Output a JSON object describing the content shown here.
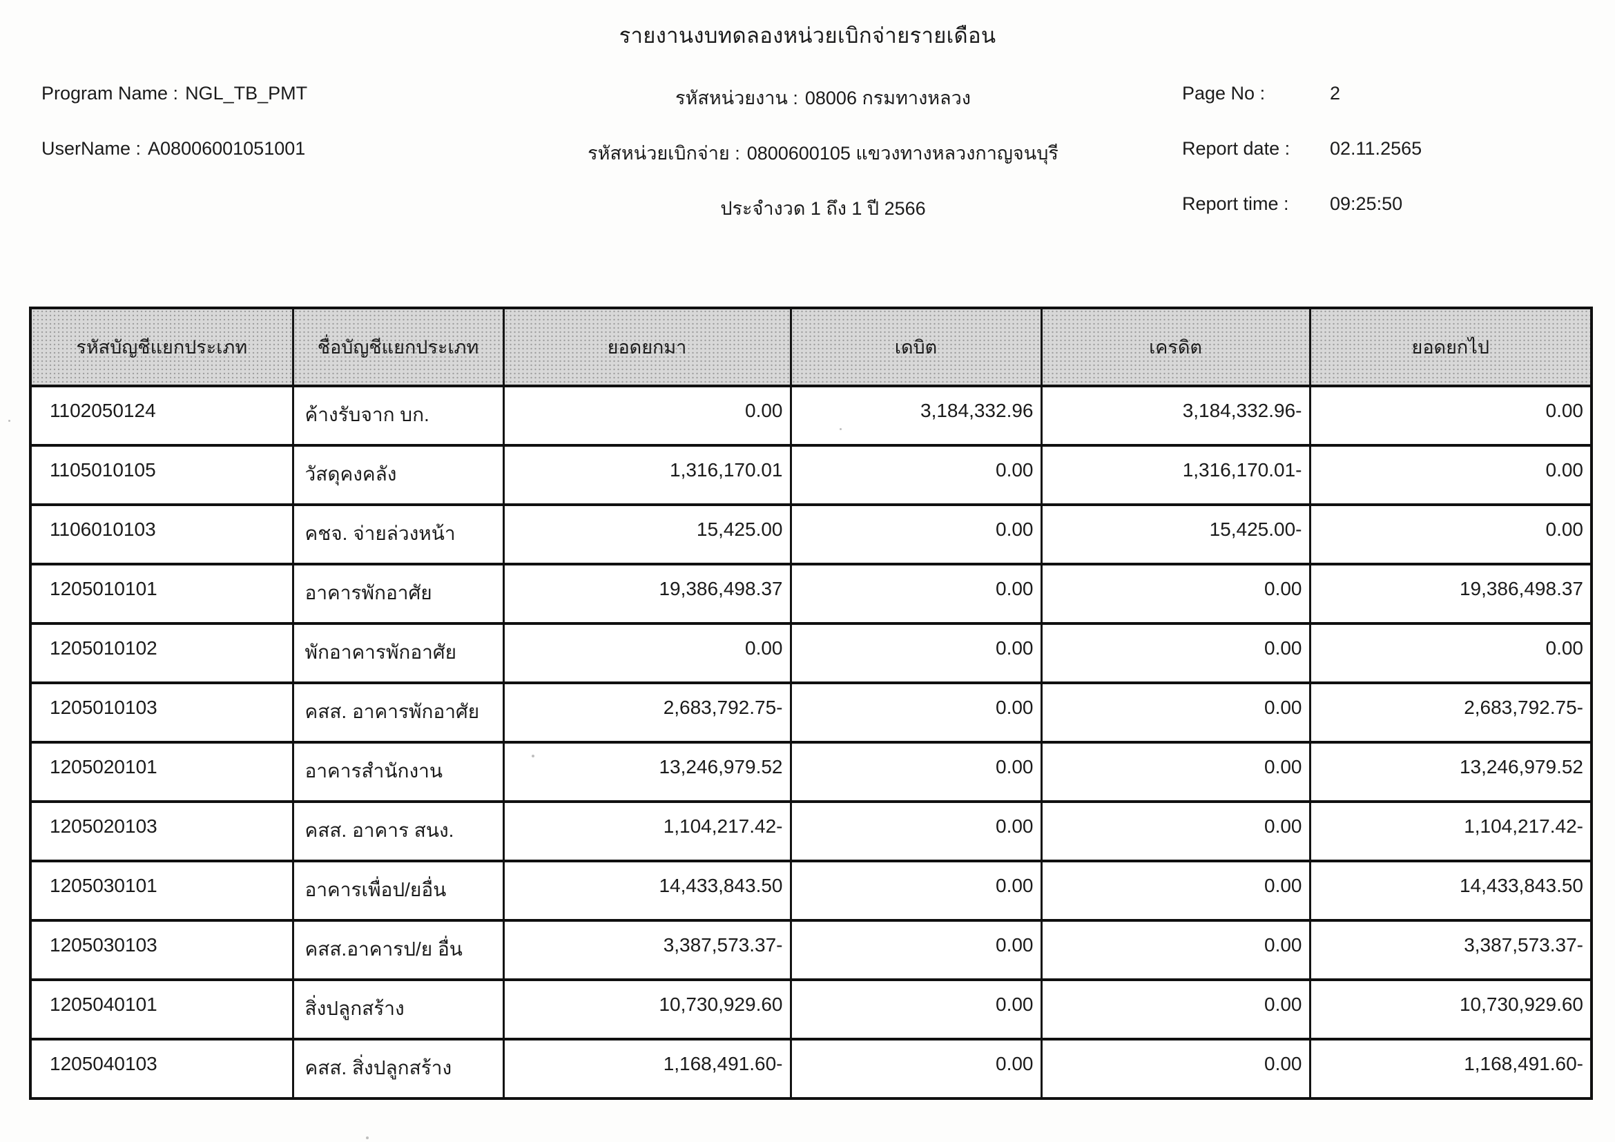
{
  "report": {
    "title": "รายงานงบทดลองหน่วยเบิกจ่ายรายเดือน",
    "program_name_label": "Program Name :",
    "program_name": "NGL_TB_PMT",
    "username_label": "UserName :",
    "username": "A08006001051001",
    "agency_label": "รหัสหน่วยงาน :",
    "agency_value": "08006 กรมทางหลวง",
    "disbursement_label": "รหัสหน่วยเบิกจ่าย :",
    "disbursement_value": "0800600105 แขวงทางหลวงกาญจนบุรี",
    "period_line": "ประจำงวด 1 ถึง 1 ปี 2566",
    "page_no_label": "Page No :",
    "page_no": "2",
    "report_date_label": "Report date :",
    "report_date": "02.11.2565",
    "report_time_label": "Report time :",
    "report_time": "09:25:50"
  },
  "colors": {
    "table_header_fill": "#d8d8d8",
    "border_ink": "#101010",
    "text_ink": "#1b1b1b"
  },
  "table": {
    "columns": [
      "รหัสบัญชีแยกประเภท",
      "ชื่อบัญชีแยกประเภท",
      "ยอดยกมา",
      "เดบิต",
      "เครดิต",
      "ยอดยกไป"
    ],
    "rows": [
      [
        "1102050124",
        "ค้างรับจาก บก.",
        "0.00",
        "3,184,332.96",
        "3,184,332.96-",
        "0.00"
      ],
      [
        "1105010105",
        "วัสดุคงคลัง",
        "1,316,170.01",
        "0.00",
        "1,316,170.01-",
        "0.00"
      ],
      [
        "1106010103",
        "คชจ. จ่ายล่วงหน้า",
        "15,425.00",
        "0.00",
        "15,425.00-",
        "0.00"
      ],
      [
        "1205010101",
        "อาคารพักอาศัย",
        "19,386,498.37",
        "0.00",
        "0.00",
        "19,386,498.37"
      ],
      [
        "1205010102",
        "พักอาคารพักอาศัย",
        "0.00",
        "0.00",
        "0.00",
        "0.00"
      ],
      [
        "1205010103",
        "คสส. อาคารพักอาศัย",
        "2,683,792.75-",
        "0.00",
        "0.00",
        "2,683,792.75-"
      ],
      [
        "1205020101",
        "อาคารสำนักงาน",
        "13,246,979.52",
        "0.00",
        "0.00",
        "13,246,979.52"
      ],
      [
        "1205020103",
        "คสส. อาคาร สนง.",
        "1,104,217.42-",
        "0.00",
        "0.00",
        "1,104,217.42-"
      ],
      [
        "1205030101",
        "อาคารเพื่อป/ยอื่น",
        "14,433,843.50",
        "0.00",
        "0.00",
        "14,433,843.50"
      ],
      [
        "1205030103",
        "คสส.อาคารป/ย อื่น",
        "3,387,573.37-",
        "0.00",
        "0.00",
        "3,387,573.37-"
      ],
      [
        "1205040101",
        "สิ่งปลูกสร้าง",
        "10,730,929.60",
        "0.00",
        "0.00",
        "10,730,929.60"
      ],
      [
        "1205040103",
        "คสส. สิ่งปลูกสร้าง",
        "1,168,491.60-",
        "0.00",
        "0.00",
        "1,168,491.60-"
      ]
    ]
  }
}
